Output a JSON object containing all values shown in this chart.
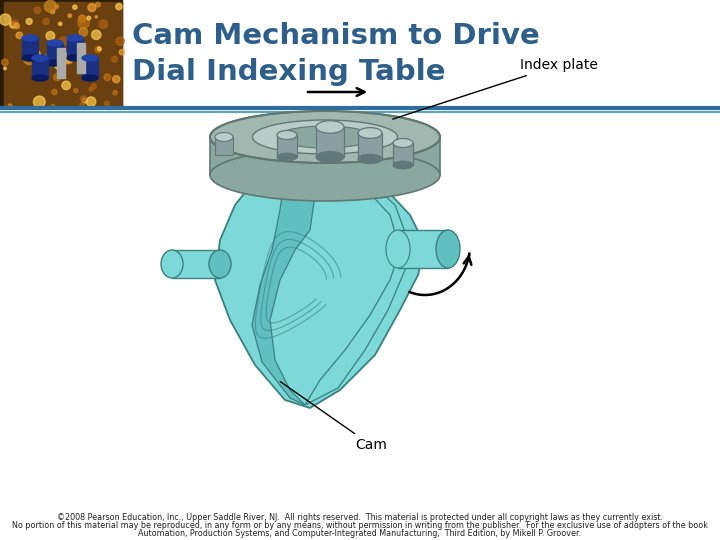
{
  "title_line1": "Cam Mechanism to Drive",
  "title_line2": "Dial Indexing Table",
  "title_color": "#2E5F8A",
  "header_bar_color1": "#2E6D9E",
  "header_bar_color2": "#5BA3C9",
  "bg_color": "#FFFFFF",
  "footer_line1": "©2008 Pearson Education, Inc., Upper Saddle River, NJ.  All rights reserved.  This material is protected under all copyright laws as they currently exist.",
  "footer_line2": "No portion of this material may be reproduced, in any form or by any means, without permission in writing from the publisher.  For the exclusive use of adopters of the book",
  "footer_line3": "Automation, Production Systems, and Computer-Integrated Manufacturing,  Third Edition, by Mikell P. Groover.",
  "label_index_plate": "Index plate",
  "label_cam": "Cam",
  "cam_color": "#7DD8D8",
  "cam_edge_color": "#3A8080",
  "cam_inner_color": "#60C0C0",
  "index_plate_top_color": "#A0B8B0",
  "index_plate_side_color": "#8AA8A0",
  "index_plate_inner_color": "#B8CCC8",
  "index_plate_edge": "#607870",
  "pin_color": "#8AA0A0",
  "pin_dark": "#607878"
}
